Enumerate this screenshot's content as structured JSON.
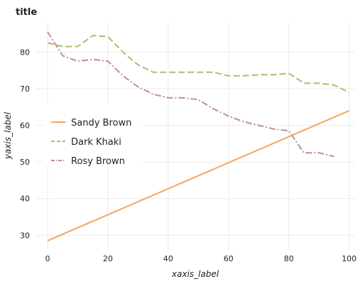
{
  "chart_data": {
    "type": "line",
    "title": "title",
    "xlabel": "xaxis_label",
    "ylabel": "yaxis_label",
    "xlim": [
      -4,
      102
    ],
    "ylim": [
      26,
      88
    ],
    "x_ticks": [
      "0",
      "20",
      "40",
      "60",
      "80",
      "100"
    ],
    "y_ticks": [
      "30",
      "40",
      "50",
      "60",
      "70",
      "80"
    ],
    "grid": true,
    "legend_position": "left",
    "series": [
      {
        "name": "Sandy Brown",
        "color": "#f4a460",
        "dash": "solid",
        "x": [
          0,
          100
        ],
        "y": [
          28.5,
          64
        ]
      },
      {
        "name": "Dark Khaki",
        "color": "#bdb76b",
        "dash": "dashed",
        "x": [
          0,
          5,
          10,
          15,
          20,
          25,
          30,
          35,
          40,
          45,
          50,
          55,
          60,
          65,
          70,
          75,
          80,
          85,
          90,
          95,
          100
        ],
        "y": [
          82.5,
          81.5,
          81.5,
          84.5,
          84.2,
          80,
          76.5,
          74.5,
          74.5,
          74.5,
          74.5,
          74.5,
          73.5,
          73.5,
          73.8,
          73.8,
          74.2,
          71.5,
          71.5,
          71,
          69
        ]
      },
      {
        "name": "Rosy Brown",
        "color": "#bc8f8f",
        "dash": "dashdot",
        "x": [
          0,
          5,
          10,
          15,
          20,
          25,
          30,
          35,
          40,
          45,
          50,
          55,
          60,
          65,
          70,
          75,
          80,
          85,
          90,
          95
        ],
        "y": [
          85.5,
          79,
          77.5,
          78,
          77.5,
          73.5,
          70.5,
          68.5,
          67.5,
          67.5,
          67,
          64.5,
          62.5,
          61,
          60,
          59,
          58.5,
          52.5,
          52.5,
          51.5
        ]
      }
    ]
  }
}
